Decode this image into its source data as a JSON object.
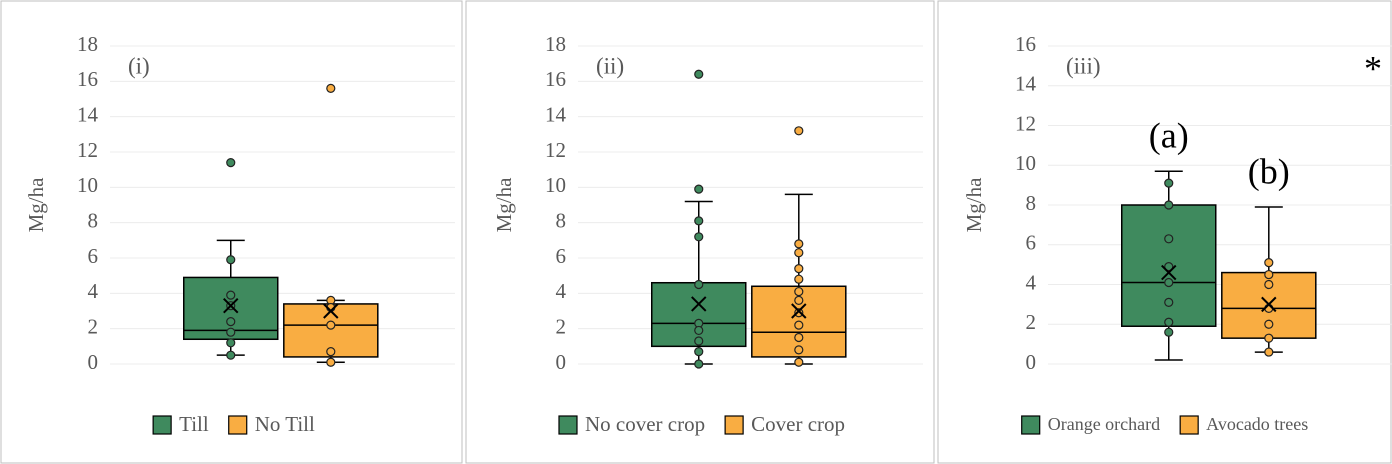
{
  "chart_data": [
    {
      "type": "box",
      "panel_label": "(i)",
      "ylabel": "Mg/ha",
      "ylim": [
        0,
        18
      ],
      "yticks": [
        0,
        2,
        4,
        6,
        8,
        10,
        12,
        14,
        16,
        18
      ],
      "grid": true,
      "legend": "bottom",
      "series": [
        {
          "name": "Till",
          "color": "#3f8a5e",
          "min": 0.5,
          "q1": 1.4,
          "median": 1.9,
          "q3": 4.9,
          "max": 7.0,
          "mean": 3.3,
          "points": [
            11.4,
            5.9,
            3.9,
            3.3,
            2.4,
            1.8,
            1.2,
            0.5
          ]
        },
        {
          "name": "No Till",
          "color": "#f9ad42",
          "min": 0.1,
          "q1": 0.4,
          "median": 2.2,
          "q3": 3.4,
          "max": 3.6,
          "mean": 3.0,
          "points": [
            15.6,
            3.6,
            3.2,
            2.2,
            0.7,
            0.1
          ]
        }
      ]
    },
    {
      "type": "box",
      "panel_label": "(ii)",
      "ylabel": "Mg/ha",
      "ylim": [
        0,
        18
      ],
      "yticks": [
        0,
        2,
        4,
        6,
        8,
        10,
        12,
        14,
        16,
        18
      ],
      "grid": true,
      "legend": "bottom",
      "series": [
        {
          "name": "No cover crop",
          "color": "#3f8a5e",
          "min": 0.0,
          "q1": 1.0,
          "median": 2.3,
          "q3": 4.6,
          "max": 9.2,
          "mean": 3.4,
          "points": [
            16.4,
            9.9,
            8.1,
            7.2,
            4.5,
            2.3,
            1.9,
            1.3,
            0.7,
            0.0
          ]
        },
        {
          "name": "Cover crop",
          "color": "#f9ad42",
          "min": 0.0,
          "q1": 0.4,
          "median": 1.8,
          "q3": 4.4,
          "max": 9.6,
          "mean": 3.0,
          "points": [
            13.2,
            6.8,
            6.3,
            5.4,
            4.8,
            4.1,
            3.6,
            2.9,
            2.2,
            1.5,
            0.8,
            0.1
          ]
        }
      ]
    },
    {
      "type": "box",
      "panel_label": "(iii)",
      "ylabel": "Mg/ha",
      "annotation": "*",
      "ylim": [
        0,
        16
      ],
      "yticks": [
        0,
        2,
        4,
        6,
        8,
        10,
        12,
        14,
        16
      ],
      "grid": true,
      "legend": "bottom",
      "series": [
        {
          "name": "Orange orchard",
          "color": "#3f8a5e",
          "label": "(a)",
          "min": 0.2,
          "q1": 1.9,
          "median": 4.1,
          "q3": 8.0,
          "max": 9.7,
          "mean": 4.6,
          "points": [
            9.1,
            8.0,
            6.3,
            4.9,
            4.1,
            3.1,
            2.1,
            1.6
          ]
        },
        {
          "name": "Avocado trees",
          "color": "#f9ad42",
          "label": "(b)",
          "min": 0.6,
          "q1": 1.3,
          "median": 2.8,
          "q3": 4.6,
          "max": 7.9,
          "mean": 3.0,
          "points": [
            5.1,
            4.5,
            4.0,
            2.8,
            2.0,
            1.3,
            0.6
          ]
        }
      ]
    }
  ]
}
